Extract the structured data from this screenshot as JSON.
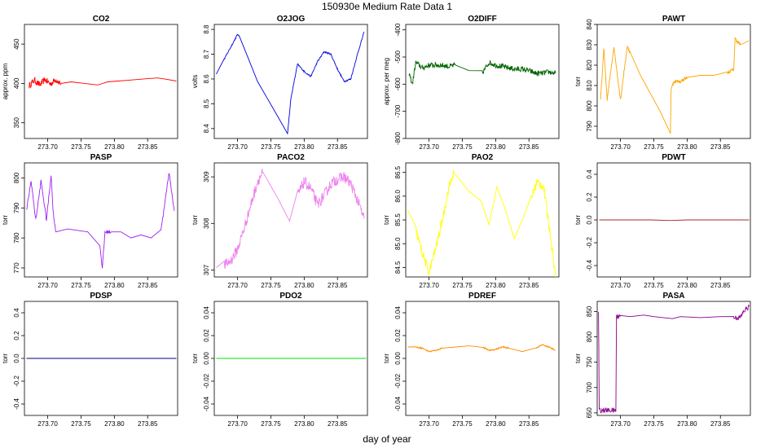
{
  "figure": {
    "title": "150930e   Medium Rate Data 1",
    "xlabel": "day of year"
  },
  "chart_data": [
    {
      "type": "line",
      "title": "CO2",
      "ylabel": "approx. ppm",
      "color": "#ff0000",
      "xlim": [
        273.665,
        273.895
      ],
      "ylim": [
        330,
        475
      ],
      "xticks": [
        273.7,
        273.75,
        273.8,
        273.85
      ],
      "yticks": [
        350,
        400,
        450
      ],
      "x": [
        273.672,
        273.68,
        273.688,
        273.696,
        273.704,
        273.712,
        273.72,
        273.735,
        273.755,
        273.775,
        273.79,
        273.805,
        273.82,
        273.835,
        273.85,
        273.865,
        273.88,
        273.893
      ],
      "y": [
        397,
        404,
        398,
        405,
        399,
        405,
        400,
        402,
        400,
        398,
        402,
        403,
        404,
        405,
        406,
        407,
        405,
        403
      ],
      "noise": 4
    },
    {
      "type": "line",
      "title": "O2JOG",
      "ylabel": "volts",
      "color": "#0000e0",
      "xlim": [
        273.665,
        273.895
      ],
      "ylim": [
        8.36,
        8.82
      ],
      "xticks": [
        273.7,
        273.75,
        273.8,
        273.85
      ],
      "yticks": [
        8.4,
        8.5,
        8.6,
        8.7,
        8.8
      ],
      "x": [
        273.668,
        273.68,
        273.69,
        273.7,
        273.703,
        273.715,
        273.73,
        273.745,
        273.76,
        273.775,
        273.78,
        273.79,
        273.8,
        273.81,
        273.82,
        273.83,
        273.84,
        273.85,
        273.86,
        273.87,
        273.88,
        273.89
      ],
      "y": [
        8.62,
        8.68,
        8.73,
        8.78,
        8.77,
        8.69,
        8.59,
        8.52,
        8.45,
        8.38,
        8.52,
        8.66,
        8.63,
        8.61,
        8.67,
        8.71,
        8.7,
        8.64,
        8.59,
        8.6,
        8.7,
        8.79
      ],
      "noise": 0.003
    },
    {
      "type": "line",
      "title": "O2DIFF",
      "ylabel": "approx. per meg",
      "color": "#006400",
      "xlim": [
        273.665,
        273.895
      ],
      "ylim": [
        -800,
        -380
      ],
      "xticks": [
        273.7,
        273.75,
        273.8,
        273.85
      ],
      "yticks": [
        -800,
        -700,
        -600,
        -500,
        -400
      ],
      "x": [
        273.67,
        273.675,
        273.68,
        273.69,
        273.7,
        273.71,
        273.72,
        273.73,
        273.74,
        273.76,
        273.78,
        273.79,
        273.8,
        273.81,
        273.82,
        273.83,
        273.84,
        273.85,
        273.86,
        273.87,
        273.88,
        273.89
      ],
      "y": [
        -560,
        -600,
        -520,
        -540,
        -530,
        -530,
        -530,
        -535,
        -530,
        -550,
        -560,
        -520,
        -530,
        -535,
        -540,
        -545,
        -545,
        -550,
        -560,
        -560,
        -555,
        -560
      ],
      "noise": 10
    },
    {
      "type": "line",
      "title": "PAWT",
      "ylabel": "torr",
      "color": "#ffa500",
      "xlim": [
        273.665,
        273.895
      ],
      "ylim": [
        784,
        840
      ],
      "xticks": [
        273.7,
        273.75,
        273.8,
        273.85
      ],
      "yticks": [
        790,
        800,
        810,
        820,
        830,
        840
      ],
      "x": [
        273.67,
        273.675,
        273.68,
        273.69,
        273.7,
        273.71,
        273.715,
        273.73,
        273.745,
        273.76,
        273.775,
        273.776,
        273.78,
        273.79,
        273.8,
        273.82,
        273.84,
        273.86,
        273.87,
        273.872,
        273.88,
        273.893
      ],
      "y": [
        803,
        828,
        803,
        829,
        803,
        829,
        826,
        815,
        806,
        797,
        787,
        808,
        812,
        812,
        814,
        815,
        815,
        816,
        818,
        833,
        830,
        832
      ],
      "noise": 0.8
    },
    {
      "type": "line",
      "title": "PASP",
      "ylabel": "torr",
      "color": "#a020f0",
      "xlim": [
        273.665,
        273.895
      ],
      "ylim": [
        767,
        805
      ],
      "xticks": [
        273.7,
        273.75,
        273.8,
        273.85
      ],
      "yticks": [
        770,
        780,
        790,
        800
      ],
      "x": [
        273.668,
        273.675,
        273.682,
        273.69,
        273.698,
        273.705,
        273.708,
        273.712,
        273.73,
        273.76,
        273.778,
        273.782,
        273.786,
        273.795,
        273.81,
        273.825,
        273.84,
        273.855,
        273.87,
        273.875,
        273.882,
        273.89
      ],
      "y": [
        789,
        799,
        786,
        799,
        786,
        801,
        789,
        782,
        783,
        782,
        778,
        770,
        782,
        782,
        782,
        780,
        781,
        780,
        783,
        790,
        802,
        789
      ],
      "noise": 0.6
    },
    {
      "type": "line",
      "title": "PACO2",
      "ylabel": "torr",
      "color": "#ee82ee",
      "xlim": [
        273.665,
        273.895
      ],
      "ylim": [
        306.85,
        309.3
      ],
      "xticks": [
        273.7,
        273.75,
        273.8,
        273.85
      ],
      "yticks": [
        307.0,
        308.0,
        309.0
      ],
      "x": [
        273.668,
        273.68,
        273.69,
        273.7,
        273.71,
        273.72,
        273.73,
        273.738,
        273.76,
        273.778,
        273.79,
        273.8,
        273.81,
        273.82,
        273.83,
        273.84,
        273.85,
        273.86,
        273.87,
        273.88,
        273.89
      ],
      "y": [
        307.05,
        307.1,
        307.2,
        307.45,
        307.9,
        308.4,
        308.9,
        309.1,
        308.55,
        308.05,
        308.6,
        308.9,
        308.75,
        308.4,
        308.6,
        308.85,
        308.95,
        309.0,
        308.85,
        308.5,
        308.1
      ],
      "noise": 0.12
    },
    {
      "type": "line",
      "title": "PAO2",
      "ylabel": "torr",
      "color": "#ffff00",
      "xlim": [
        273.665,
        273.895
      ],
      "ylim": [
        84.3,
        86.7
      ],
      "xticks": [
        273.7,
        273.75,
        273.8,
        273.85
      ],
      "yticks": [
        84.5,
        85.0,
        85.5,
        86.0,
        86.5
      ],
      "x": [
        273.668,
        273.68,
        273.69,
        273.7,
        273.71,
        273.72,
        273.73,
        273.737,
        273.76,
        273.778,
        273.79,
        273.802,
        273.815,
        273.828,
        273.84,
        273.852,
        273.862,
        273.872,
        273.882,
        273.89
      ],
      "y": [
        85.7,
        85.3,
        84.8,
        84.4,
        84.9,
        85.5,
        86.2,
        86.5,
        86.1,
        85.9,
        85.4,
        86.2,
        85.7,
        85.1,
        85.5,
        85.9,
        86.3,
        86.2,
        85.2,
        84.3
      ],
      "noise": 0.1
    },
    {
      "type": "line",
      "title": "PDWT",
      "ylabel": "torr",
      "color": "#a52a2a",
      "xlim": [
        273.665,
        273.895
      ],
      "ylim": [
        -0.5,
        0.5
      ],
      "xticks": [
        273.7,
        273.75,
        273.8,
        273.85
      ],
      "yticks": [
        -0.4,
        -0.2,
        0.0,
        0.2,
        0.4
      ],
      "x": [
        273.668,
        273.69,
        273.715,
        273.745,
        273.775,
        273.8,
        273.83,
        273.86,
        273.893
      ],
      "y": [
        0.0,
        0.0,
        0.0,
        0.0,
        -0.005,
        0.0,
        0.0,
        0.0,
        0.0
      ],
      "noise": 0.012
    },
    {
      "type": "line",
      "title": "PDSP",
      "ylabel": "torr",
      "color": "#000080",
      "xlim": [
        273.665,
        273.895
      ],
      "ylim": [
        -0.5,
        0.5
      ],
      "xticks": [
        273.7,
        273.75,
        273.8,
        273.85
      ],
      "yticks": [
        -0.4,
        -0.2,
        0.0,
        0.2,
        0.4
      ],
      "x": [
        273.668,
        273.69,
        273.715,
        273.745,
        273.775,
        273.8,
        273.83,
        273.86,
        273.893
      ],
      "y": [
        0.0,
        0.0,
        0.0,
        0.0,
        0.0,
        0.0,
        0.0,
        0.0,
        0.0
      ],
      "noise": 0.012
    },
    {
      "type": "line",
      "title": "PDO2",
      "ylabel": "torr",
      "color": "#00e000",
      "xlim": [
        273.665,
        273.895
      ],
      "ylim": [
        -0.05,
        0.05
      ],
      "xticks": [
        273.7,
        273.75,
        273.8,
        273.85
      ],
      "yticks": [
        -0.04,
        -0.02,
        0.0,
        0.02,
        0.04
      ],
      "x": [
        273.668,
        273.69,
        273.715,
        273.745,
        273.775,
        273.8,
        273.83,
        273.86,
        273.893
      ],
      "y": [
        0.0,
        0.0,
        0.0,
        0.0,
        0.0,
        0.0,
        0.0,
        0.0,
        0.0
      ],
      "noise": 0.0006
    },
    {
      "type": "line",
      "title": "PDREF",
      "ylabel": "torr",
      "color": "#ff8c00",
      "xlim": [
        273.665,
        273.895
      ],
      "ylim": [
        -0.05,
        0.05
      ],
      "xticks": [
        273.7,
        273.75,
        273.8,
        273.85
      ],
      "yticks": [
        -0.04,
        -0.02,
        0.0,
        0.02,
        0.04
      ],
      "x": [
        273.668,
        273.68,
        273.69,
        273.7,
        273.71,
        273.72,
        273.74,
        273.76,
        273.78,
        273.79,
        273.8,
        273.81,
        273.82,
        273.84,
        273.86,
        273.87,
        273.88,
        273.89
      ],
      "y": [
        0.01,
        0.01,
        0.009,
        0.006,
        0.007,
        0.009,
        0.01,
        0.011,
        0.01,
        0.007,
        0.008,
        0.01,
        0.009,
        0.006,
        0.009,
        0.012,
        0.01,
        0.007
      ],
      "noise": 0.0006
    },
    {
      "type": "line",
      "title": "PASA",
      "ylabel": "torr",
      "color": "#8b008b",
      "xlim": [
        273.665,
        273.895
      ],
      "ylim": [
        645,
        870
      ],
      "xticks": [
        273.7,
        273.75,
        273.8,
        273.85
      ],
      "yticks": [
        650,
        700,
        750,
        800,
        850
      ],
      "x": [
        273.667,
        273.6675,
        273.668,
        273.675,
        273.685,
        273.693,
        273.694,
        273.7,
        273.715,
        273.735,
        273.75,
        273.778,
        273.79,
        273.82,
        273.85,
        273.87,
        273.88,
        273.885,
        273.893
      ],
      "y": [
        845,
        780,
        655,
        655,
        655,
        655,
        840,
        842,
        840,
        843,
        840,
        836,
        840,
        838,
        840,
        838,
        838,
        850,
        860
      ],
      "noise": 5
    }
  ]
}
